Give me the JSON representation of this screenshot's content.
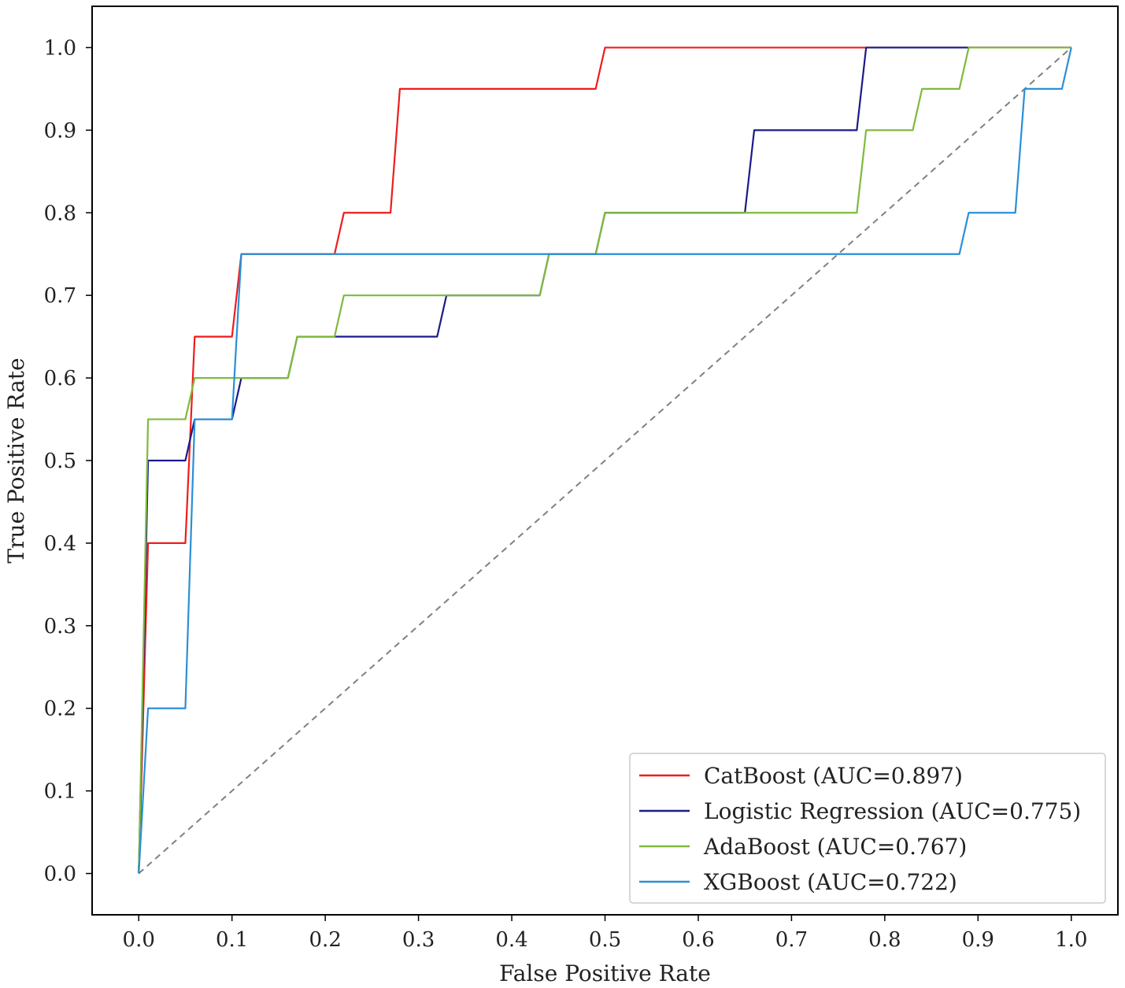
{
  "chart_data": {
    "type": "line",
    "title": "",
    "xlabel": "False Positive Rate",
    "ylabel": "True Positive Rate",
    "xlim": [
      -0.05,
      1.05
    ],
    "ylim": [
      -0.05,
      1.05
    ],
    "xticks": [
      0.0,
      0.1,
      0.2,
      0.3,
      0.4,
      0.5,
      0.6,
      0.7,
      0.8,
      0.9,
      1.0
    ],
    "yticks": [
      0.0,
      0.1,
      0.2,
      0.3,
      0.4,
      0.5,
      0.6,
      0.7,
      0.8,
      0.9,
      1.0
    ],
    "xtick_labels": [
      "0.0",
      "0.1",
      "0.2",
      "0.3",
      "0.4",
      "0.5",
      "0.6",
      "0.7",
      "0.8",
      "0.9",
      "1.0"
    ],
    "ytick_labels": [
      "0.0",
      "0.1",
      "0.2",
      "0.3",
      "0.4",
      "0.5",
      "0.6",
      "0.7",
      "0.8",
      "0.9",
      "1.0"
    ],
    "legend_position": "bottom-right",
    "grid": false,
    "series": [
      {
        "name": "CatBoost (AUC=0.897)",
        "color": "#ee1c1c",
        "points": [
          [
            0.0,
            0.0
          ],
          [
            0.01,
            0.4
          ],
          [
            0.05,
            0.4
          ],
          [
            0.06,
            0.65
          ],
          [
            0.1,
            0.65
          ],
          [
            0.11,
            0.75
          ],
          [
            0.21,
            0.75
          ],
          [
            0.22,
            0.8
          ],
          [
            0.27,
            0.8
          ],
          [
            0.28,
            0.95
          ],
          [
            0.49,
            0.95
          ],
          [
            0.5,
            1.0
          ],
          [
            1.0,
            1.0
          ]
        ]
      },
      {
        "name": "Logistic Regression (AUC=0.775)",
        "color": "#1a1a8c",
        "points": [
          [
            0.0,
            0.0
          ],
          [
            0.01,
            0.5
          ],
          [
            0.05,
            0.5
          ],
          [
            0.06,
            0.55
          ],
          [
            0.1,
            0.55
          ],
          [
            0.11,
            0.6
          ],
          [
            0.16,
            0.6
          ],
          [
            0.17,
            0.65
          ],
          [
            0.32,
            0.65
          ],
          [
            0.33,
            0.7
          ],
          [
            0.43,
            0.7
          ],
          [
            0.44,
            0.75
          ],
          [
            0.49,
            0.75
          ],
          [
            0.5,
            0.8
          ],
          [
            0.65,
            0.8
          ],
          [
            0.66,
            0.9
          ],
          [
            0.77,
            0.9
          ],
          [
            0.78,
            1.0
          ],
          [
            1.0,
            1.0
          ]
        ]
      },
      {
        "name": "AdaBoost (AUC=0.767)",
        "color": "#7fba3c",
        "points": [
          [
            0.0,
            0.0
          ],
          [
            0.01,
            0.55
          ],
          [
            0.05,
            0.55
          ],
          [
            0.06,
            0.6
          ],
          [
            0.16,
            0.6
          ],
          [
            0.17,
            0.65
          ],
          [
            0.21,
            0.65
          ],
          [
            0.22,
            0.7
          ],
          [
            0.43,
            0.7
          ],
          [
            0.44,
            0.75
          ],
          [
            0.49,
            0.75
          ],
          [
            0.5,
            0.8
          ],
          [
            0.77,
            0.8
          ],
          [
            0.78,
            0.9
          ],
          [
            0.83,
            0.9
          ],
          [
            0.84,
            0.95
          ],
          [
            0.88,
            0.95
          ],
          [
            0.89,
            1.0
          ],
          [
            1.0,
            1.0
          ]
        ]
      },
      {
        "name": "XGBoost (AUC=0.722)",
        "color": "#2a8fd6",
        "points": [
          [
            0.0,
            0.0
          ],
          [
            0.01,
            0.2
          ],
          [
            0.05,
            0.2
          ],
          [
            0.06,
            0.55
          ],
          [
            0.1,
            0.55
          ],
          [
            0.11,
            0.75
          ],
          [
            0.88,
            0.75
          ],
          [
            0.89,
            0.8
          ],
          [
            0.94,
            0.8
          ],
          [
            0.95,
            0.95
          ],
          [
            0.99,
            0.95
          ],
          [
            1.0,
            1.0
          ]
        ]
      }
    ],
    "reference_line": {
      "name": "chance diagonal",
      "color": "#808080",
      "style": "dashed",
      "points": [
        [
          0.0,
          0.0
        ],
        [
          1.0,
          1.0
        ]
      ]
    }
  }
}
